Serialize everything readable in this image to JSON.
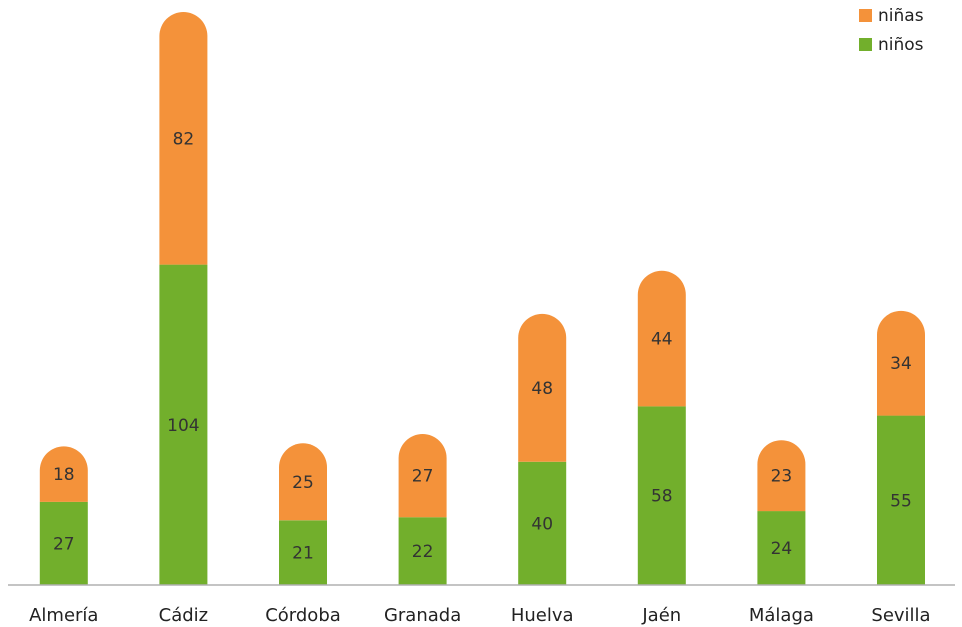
{
  "chart_data": {
    "type": "bar",
    "stacked": true,
    "title": "",
    "xlabel": "",
    "ylabel": "",
    "categories": [
      "Almería",
      "Cádiz",
      "Córdoba",
      "Granada",
      "Huelva",
      "Jaén",
      "Málaga",
      "Sevilla"
    ],
    "series": [
      {
        "name": "niños",
        "values": [
          27,
          104,
          21,
          22,
          40,
          58,
          24,
          55
        ],
        "color": "#72AF2C"
      },
      {
        "name": "niñas",
        "values": [
          18,
          82,
          25,
          27,
          48,
          44,
          23,
          34
        ],
        "color": "#F4923A"
      }
    ],
    "ylim": [
      0,
      186
    ],
    "grid": false,
    "legend": "top-right"
  }
}
